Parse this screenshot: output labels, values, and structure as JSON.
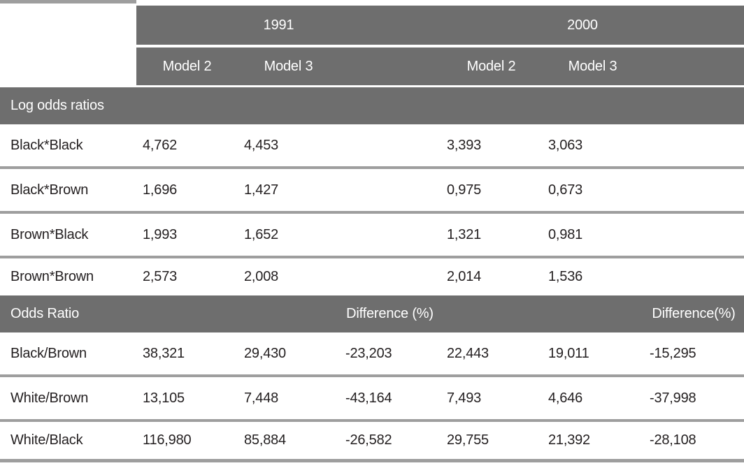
{
  "colors": {
    "band_gray": "#6e6e6e",
    "separator_gray": "#9e9e9e",
    "text_dark": "#231f20",
    "header_text": "#ffffff",
    "background": "#ffffff"
  },
  "header": {
    "years": [
      "1991",
      "2000"
    ],
    "models": [
      "Model 2",
      "Model 3",
      "Model 2",
      "Model 3"
    ]
  },
  "log_odds": {
    "title": "Log odds ratios",
    "rows": [
      {
        "label": "Black*Black",
        "v": [
          "4,762",
          "4,453",
          "",
          "3,393",
          "3,063",
          ""
        ]
      },
      {
        "label": "Black*Brown",
        "v": [
          "1,696",
          "1,427",
          "",
          "0,975",
          "0,673",
          ""
        ]
      },
      {
        "label": "Brown*Black",
        "v": [
          "1,993",
          "1,652",
          "",
          "1,321",
          "0,981",
          ""
        ]
      },
      {
        "label": "Brown*Brown",
        "v": [
          "2,573",
          "2,008",
          "",
          "2,014",
          "1,536",
          ""
        ]
      }
    ]
  },
  "odds_ratio": {
    "title": "Odds Ratio",
    "difference_1991": "Difference (%)",
    "difference_2000": "Difference(%)",
    "rows": [
      {
        "label": "Black/Brown",
        "v": [
          "38,321",
          "29,430",
          "-23,203",
          "22,443",
          "19,011",
          "-15,295"
        ]
      },
      {
        "label": "White/Brown",
        "v": [
          "13,105",
          "7,448",
          "-43,164",
          "7,493",
          "4,646",
          "-37,998"
        ]
      },
      {
        "label": "White/Black",
        "v": [
          "116,980",
          "85,884",
          "-26,582",
          "29,755",
          "21,392",
          "-28,108"
        ]
      }
    ]
  }
}
